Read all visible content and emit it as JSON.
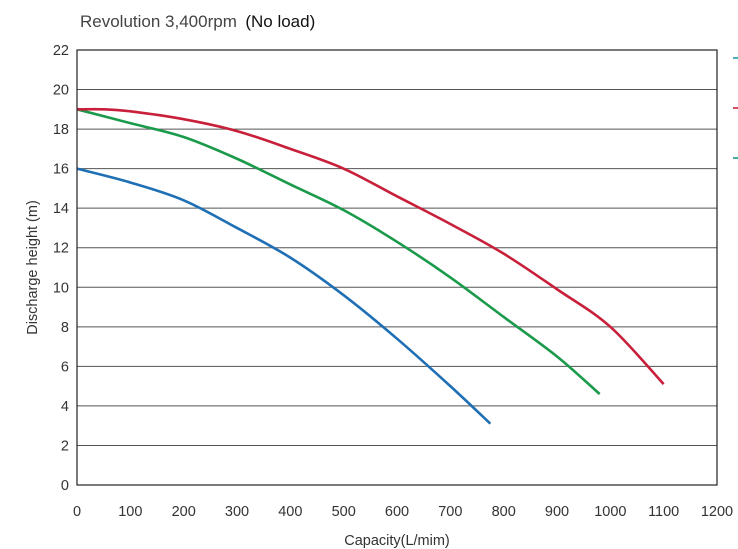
{
  "chart_data": {
    "type": "line",
    "title_main": "Revolution 3,400rpm",
    "title_paren": "(No load)",
    "xlabel": "Capacity(L/mim)",
    "ylabel": "Discharge height (m)",
    "xlim": [
      0,
      1200
    ],
    "ylim": [
      0,
      22
    ],
    "xticks": [
      "0",
      "100",
      "200",
      "300",
      "400",
      "500",
      "600",
      "700",
      "800",
      "900",
      "1000",
      "1100",
      "1200"
    ],
    "yticks": [
      "0",
      "2",
      "4",
      "6",
      "8",
      "10",
      "12",
      "14",
      "16",
      "18",
      "20",
      "22"
    ],
    "grid": "horizontal",
    "series": [
      {
        "color": "#1f6fb5",
        "x": [
          0,
          100,
          200,
          300,
          400,
          500,
          600,
          700,
          775
        ],
        "y": [
          16.0,
          15.3,
          14.4,
          13.0,
          11.5,
          9.6,
          7.4,
          5.0,
          3.1
        ]
      },
      {
        "color": "#1a9a4a",
        "x": [
          0,
          100,
          200,
          300,
          400,
          500,
          600,
          700,
          800,
          900,
          980
        ],
        "y": [
          19.0,
          18.3,
          17.6,
          16.5,
          15.2,
          13.9,
          12.3,
          10.5,
          8.5,
          6.5,
          4.6
        ]
      },
      {
        "color": "#c8203a",
        "x": [
          0,
          50,
          100,
          200,
          300,
          400,
          500,
          600,
          700,
          800,
          900,
          1000,
          1100
        ],
        "y": [
          19.0,
          19.0,
          18.9,
          18.5,
          17.9,
          17.0,
          16.0,
          14.6,
          13.2,
          11.7,
          9.9,
          8.0,
          5.1
        ]
      }
    ],
    "legend_markers": [
      "#1f9bb0",
      "#c8203a",
      "#1a9a8a"
    ]
  }
}
